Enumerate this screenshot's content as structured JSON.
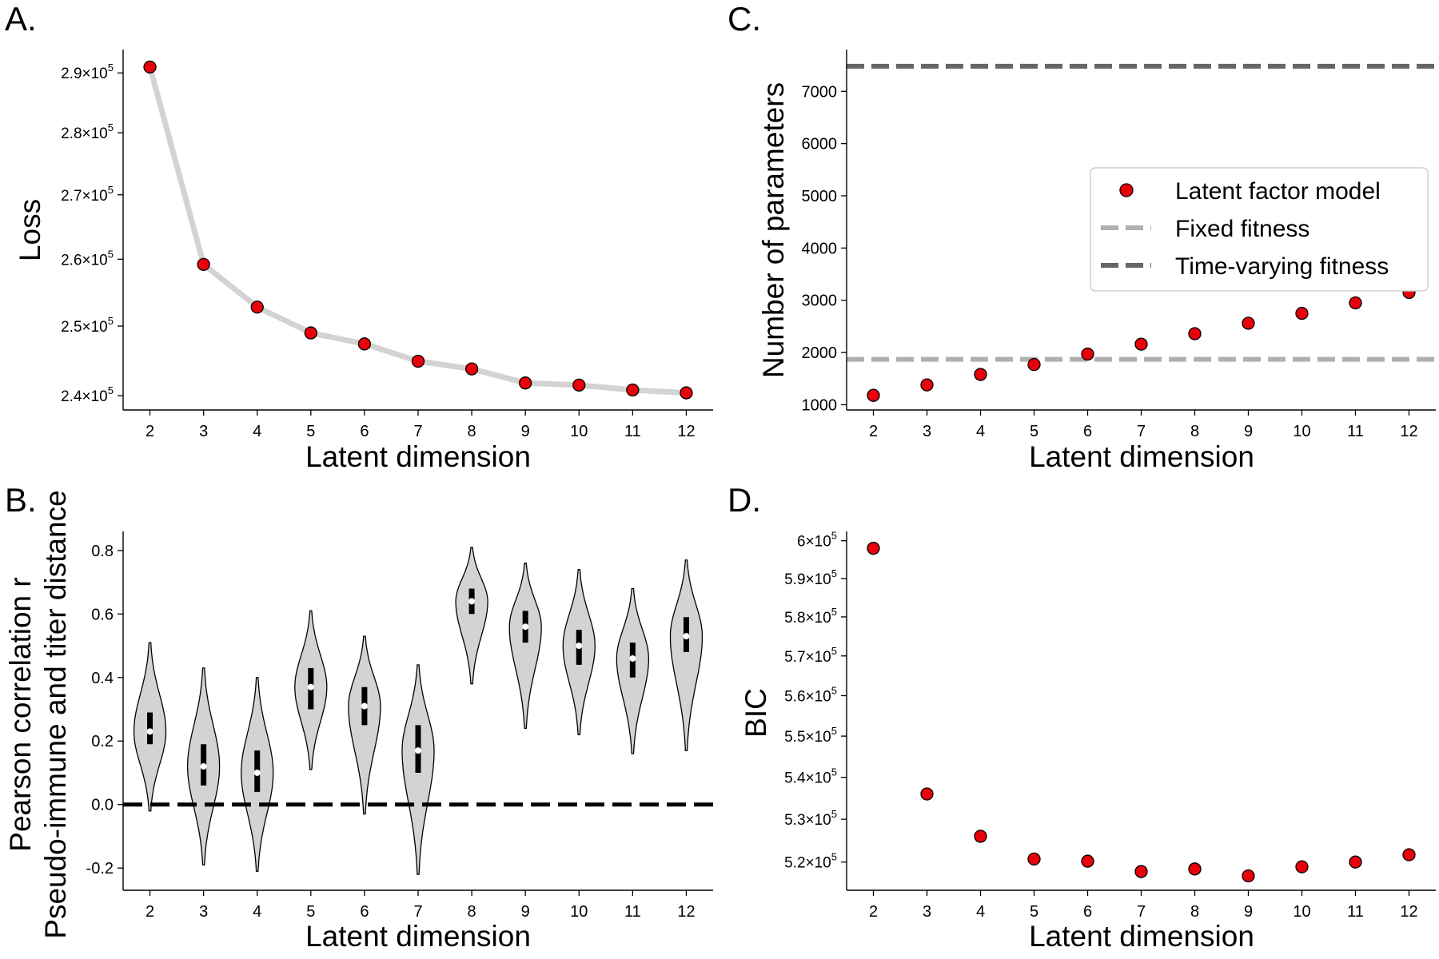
{
  "colors": {
    "marker": "#e8000b",
    "gray_line": "#d3d3d3",
    "fixed_fitness": "#b0b0b0",
    "time_varying": "#666666",
    "violin": "#d3d3d3"
  },
  "chart_data": [
    {
      "panel": "A.",
      "type": "line",
      "x": [
        2,
        3,
        4,
        5,
        6,
        7,
        8,
        9,
        10,
        11,
        12
      ],
      "y": [
        291000,
        259200,
        252800,
        249000,
        247400,
        244900,
        243800,
        241800,
        241500,
        240800,
        240400
      ],
      "xlabel": "Latent dimension",
      "ylabel": "Loss",
      "xticks": [
        "2",
        "3",
        "4",
        "5",
        "6",
        "7",
        "8",
        "9",
        "10",
        "11",
        "12"
      ],
      "yticks": [
        {
          "value": 240000,
          "mant": "2.4",
          "base": "10",
          "exp": "5"
        },
        {
          "value": 250000,
          "mant": "2.5",
          "base": "10",
          "exp": "5"
        },
        {
          "value": 260000,
          "mant": "2.6",
          "base": "10",
          "exp": "5"
        },
        {
          "value": 270000,
          "mant": "2.7",
          "base": "10",
          "exp": "5"
        },
        {
          "value": 280000,
          "mant": "2.8",
          "base": "10",
          "exp": "5"
        },
        {
          "value": 290000,
          "mant": "2.9",
          "base": "10",
          "exp": "5"
        }
      ],
      "yscale": "log",
      "ylim": [
        238000,
        294000
      ],
      "xlim": [
        1.5,
        12.5
      ],
      "grid": false
    },
    {
      "panel": "B.",
      "type": "violin",
      "x": [
        2,
        3,
        4,
        5,
        6,
        7,
        8,
        9,
        10,
        11,
        12
      ],
      "median": [
        0.23,
        0.12,
        0.1,
        0.37,
        0.31,
        0.17,
        0.64,
        0.56,
        0.5,
        0.46,
        0.53
      ],
      "q1": [
        0.19,
        0.06,
        0.04,
        0.3,
        0.25,
        0.1,
        0.6,
        0.51,
        0.44,
        0.4,
        0.48
      ],
      "q3": [
        0.29,
        0.19,
        0.17,
        0.43,
        0.37,
        0.25,
        0.68,
        0.61,
        0.55,
        0.51,
        0.59
      ],
      "min": [
        -0.02,
        -0.19,
        -0.21,
        0.11,
        -0.03,
        -0.22,
        0.38,
        0.24,
        0.22,
        0.16,
        0.17
      ],
      "max": [
        0.51,
        0.43,
        0.4,
        0.61,
        0.53,
        0.44,
        0.81,
        0.76,
        0.74,
        0.68,
        0.77
      ],
      "reference_line": 0.0,
      "xlabel": "Latent dimension",
      "ylabel_lines": [
        "Pearson correlation r",
        "Pseudo-immune and titer distance"
      ],
      "xticks": [
        "2",
        "3",
        "4",
        "5",
        "6",
        "7",
        "8",
        "9",
        "10",
        "11",
        "12"
      ],
      "yticks": [
        "-0.2",
        "0.0",
        "0.2",
        "0.4",
        "0.6",
        "0.8"
      ],
      "ylim": [
        -0.27,
        0.86
      ],
      "xlim": [
        1.5,
        12.5
      ],
      "grid": false
    },
    {
      "panel": "C.",
      "type": "scatter",
      "x": [
        2,
        3,
        4,
        5,
        6,
        7,
        8,
        9,
        10,
        11,
        12
      ],
      "y": [
        1180,
        1380,
        1580,
        1770,
        1970,
        2160,
        2360,
        2560,
        2750,
        2950,
        3150
      ],
      "hlines": [
        {
          "name": "Fixed fitness",
          "value": 1870,
          "style": "dashed"
        },
        {
          "name": "Time-varying fitness",
          "value": 7480,
          "style": "dashed"
        }
      ],
      "series_name": "Latent factor model",
      "legend": [
        "Latent factor model",
        "Fixed fitness",
        "Time-varying fitness"
      ],
      "legend_position": "center-right",
      "xlabel": "Latent dimension",
      "ylabel": "Number of parameters",
      "xticks": [
        "2",
        "3",
        "4",
        "5",
        "6",
        "7",
        "8",
        "9",
        "10",
        "11",
        "12"
      ],
      "yticks": [
        "1000",
        "2000",
        "3000",
        "4000",
        "5000",
        "6000",
        "7000"
      ],
      "ylim": [
        900,
        7800
      ],
      "xlim": [
        1.5,
        12.5
      ],
      "grid": false
    },
    {
      "panel": "D.",
      "type": "scatter",
      "x": [
        2,
        3,
        4,
        5,
        6,
        7,
        8,
        9,
        10,
        11,
        12
      ],
      "y": [
        598000,
        536000,
        526000,
        520700,
        520200,
        517800,
        518400,
        516800,
        518900,
        520000,
        521700
      ],
      "xlabel": "Latent dimension",
      "ylabel": "BIC",
      "xticks": [
        "2",
        "3",
        "4",
        "5",
        "6",
        "7",
        "8",
        "9",
        "10",
        "11",
        "12"
      ],
      "yticks": [
        {
          "value": 520000,
          "mant": "5.2",
          "base": "10",
          "exp": "5"
        },
        {
          "value": 530000,
          "mant": "5.3",
          "base": "10",
          "exp": "5"
        },
        {
          "value": 540000,
          "mant": "5.4",
          "base": "10",
          "exp": "5"
        },
        {
          "value": 550000,
          "mant": "5.5",
          "base": "10",
          "exp": "5"
        },
        {
          "value": 560000,
          "mant": "5.6",
          "base": "10",
          "exp": "5"
        },
        {
          "value": 570000,
          "mant": "5.7",
          "base": "10",
          "exp": "5"
        },
        {
          "value": 580000,
          "mant": "5.8",
          "base": "10",
          "exp": "5"
        },
        {
          "value": 590000,
          "mant": "5.9",
          "base": "10",
          "exp": "5"
        },
        {
          "value": 600000,
          "mant": "6",
          "base": "10",
          "exp": "5"
        }
      ],
      "yscale": "log",
      "ylim": [
        513500,
        602500
      ],
      "xlim": [
        1.5,
        12.5
      ],
      "grid": false
    }
  ]
}
